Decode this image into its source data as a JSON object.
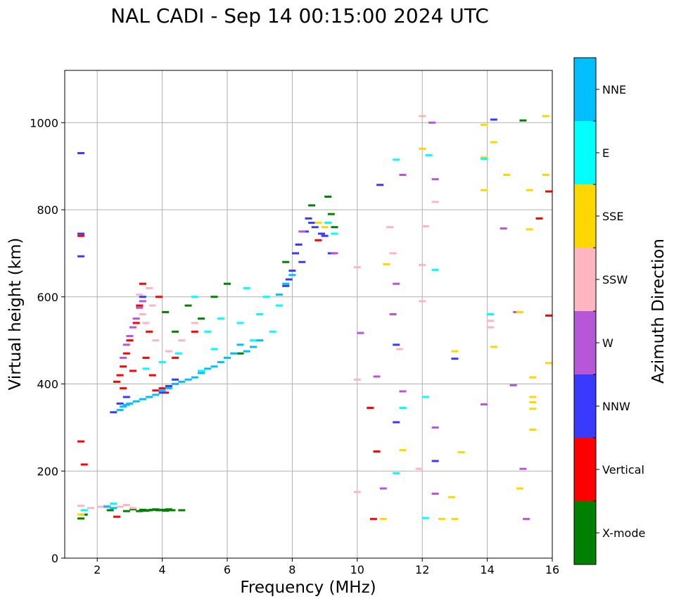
{
  "chart_data": {
    "type": "scatter",
    "title": "NAL CADI - Sep 14 00:15:00 2024 UTC",
    "xlabel": "Frequency (MHz)",
    "ylabel": "Virtual height (km)",
    "xlim": [
      1,
      16
    ],
    "ylim": [
      0,
      1120
    ],
    "xticks": [
      2,
      4,
      6,
      8,
      10,
      12,
      14,
      16
    ],
    "yticks": [
      0,
      200,
      400,
      600,
      800,
      1000
    ],
    "grid": true,
    "colorbar": {
      "title": "Azimuth Direction",
      "categories": [
        "X-mode",
        "Vertical",
        "NNW",
        "W",
        "SSW",
        "SSE",
        "E",
        "NNE"
      ],
      "colors": [
        "#008000",
        "#ff0000",
        "#3a3aff",
        "#b557d6",
        "#ffb6c1",
        "#ffd700",
        "#00ffff",
        "#00bfff"
      ]
    },
    "series": [
      {
        "name": "X-mode",
        "points": [
          [
            1.5,
            91
          ],
          [
            1.6,
            100
          ],
          [
            2.4,
            110
          ],
          [
            2.9,
            108
          ],
          [
            3.1,
            112
          ],
          [
            3.3,
            108
          ],
          [
            3.4,
            111
          ],
          [
            3.5,
            109
          ],
          [
            3.6,
            110
          ],
          [
            3.7,
            111
          ],
          [
            3.8,
            112
          ],
          [
            3.9,
            110
          ],
          [
            4.0,
            111
          ],
          [
            4.1,
            109
          ],
          [
            4.2,
            112
          ],
          [
            4.3,
            110
          ],
          [
            4.6,
            110
          ],
          [
            4.1,
            565
          ],
          [
            4.4,
            520
          ],
          [
            4.8,
            580
          ],
          [
            5.2,
            550
          ],
          [
            5.6,
            600
          ],
          [
            6.0,
            630
          ],
          [
            6.4,
            470
          ],
          [
            7.8,
            680
          ],
          [
            8.6,
            810
          ],
          [
            9.1,
            830
          ],
          [
            9.2,
            790
          ],
          [
            9.3,
            760
          ],
          [
            15.1,
            1005
          ]
        ]
      },
      {
        "name": "Vertical",
        "points": [
          [
            1.5,
            740
          ],
          [
            1.5,
            268
          ],
          [
            1.6,
            215
          ],
          [
            2.6,
            95
          ],
          [
            2.6,
            405
          ],
          [
            2.7,
            420
          ],
          [
            2.8,
            440
          ],
          [
            2.8,
            390
          ],
          [
            2.9,
            470
          ],
          [
            3.0,
            500
          ],
          [
            3.1,
            430
          ],
          [
            3.2,
            540
          ],
          [
            3.3,
            580
          ],
          [
            3.4,
            630
          ],
          [
            3.5,
            460
          ],
          [
            3.6,
            520
          ],
          [
            3.7,
            420
          ],
          [
            3.8,
            385
          ],
          [
            3.9,
            600
          ],
          [
            4.0,
            390
          ],
          [
            4.1,
            380
          ],
          [
            4.4,
            460
          ],
          [
            5.0,
            520
          ],
          [
            8.8,
            730
          ],
          [
            10.4,
            345
          ],
          [
            10.5,
            90
          ],
          [
            10.6,
            245
          ],
          [
            15.9,
            842
          ],
          [
            15.6,
            780
          ],
          [
            16,
            557
          ]
        ]
      },
      {
        "name": "NNW",
        "points": [
          [
            1.5,
            930
          ],
          [
            1.5,
            693
          ],
          [
            1.5,
            745
          ],
          [
            2.5,
            335
          ],
          [
            2.7,
            355
          ],
          [
            2.9,
            370
          ],
          [
            3.4,
            600
          ],
          [
            4.0,
            380
          ],
          [
            4.2,
            395
          ],
          [
            4.4,
            410
          ],
          [
            7.8,
            625
          ],
          [
            7.9,
            640
          ],
          [
            8.0,
            660
          ],
          [
            8.1,
            700
          ],
          [
            8.2,
            720
          ],
          [
            8.3,
            680
          ],
          [
            8.4,
            750
          ],
          [
            8.5,
            780
          ],
          [
            8.6,
            770
          ],
          [
            8.7,
            760
          ],
          [
            8.9,
            745
          ],
          [
            9.0,
            740
          ],
          [
            9.2,
            700
          ],
          [
            10.7,
            857
          ],
          [
            11.2,
            312
          ],
          [
            12.4,
            223
          ],
          [
            14.2,
            1007
          ],
          [
            13.0,
            458
          ],
          [
            11.2,
            490
          ]
        ]
      },
      {
        "name": "W",
        "points": [
          [
            2.8,
            460
          ],
          [
            2.9,
            490
          ],
          [
            3.0,
            510
          ],
          [
            3.1,
            530
          ],
          [
            3.2,
            550
          ],
          [
            3.3,
            575
          ],
          [
            3.4,
            590
          ],
          [
            8.3,
            750
          ],
          [
            9.3,
            700
          ],
          [
            10.1,
            517
          ],
          [
            10.6,
            417
          ],
          [
            11.1,
            560
          ],
          [
            11.4,
            880
          ],
          [
            11.2,
            630
          ],
          [
            12.4,
            870
          ],
          [
            12.3,
            1000
          ],
          [
            12.4,
            300
          ],
          [
            13.9,
            353
          ],
          [
            14.5,
            757
          ],
          [
            14.8,
            397
          ],
          [
            14.9,
            565
          ],
          [
            15.1,
            205
          ],
          [
            15.2,
            90
          ],
          [
            12.4,
            148
          ],
          [
            11.4,
            383
          ],
          [
            10.8,
            160
          ]
        ]
      },
      {
        "name": "SSW",
        "points": [
          [
            1.5,
            120
          ],
          [
            1.8,
            115
          ],
          [
            2.1,
            118
          ],
          [
            2.3,
            120
          ],
          [
            2.5,
            125
          ],
          [
            2.7,
            118
          ],
          [
            2.9,
            122
          ],
          [
            3.1,
            115
          ],
          [
            3.3,
            605
          ],
          [
            3.4,
            560
          ],
          [
            3.5,
            540
          ],
          [
            3.6,
            620
          ],
          [
            3.7,
            580
          ],
          [
            3.8,
            500
          ],
          [
            4.2,
            475
          ],
          [
            4.6,
            500
          ],
          [
            5.0,
            540
          ],
          [
            10.0,
            410
          ],
          [
            10.0,
            668
          ],
          [
            10.0,
            152
          ],
          [
            11.0,
            760
          ],
          [
            11.1,
            700
          ],
          [
            11.3,
            480
          ],
          [
            12.0,
            1015
          ],
          [
            12.1,
            762
          ],
          [
            12.4,
            818
          ],
          [
            12.0,
            673
          ],
          [
            12.0,
            590
          ],
          [
            11.9,
            205
          ],
          [
            14.1,
            545
          ],
          [
            14.1,
            530
          ]
        ]
      },
      {
        "name": "SSE",
        "points": [
          [
            1.5,
            100
          ],
          [
            8.8,
            770
          ],
          [
            9.0,
            760
          ],
          [
            10.8,
            90
          ],
          [
            10.9,
            675
          ],
          [
            11.4,
            248
          ],
          [
            12.0,
            940
          ],
          [
            12.6,
            90
          ],
          [
            13.0,
            475
          ],
          [
            13.2,
            243
          ],
          [
            13.0,
            90
          ],
          [
            12.9,
            140
          ],
          [
            13.9,
            995
          ],
          [
            13.9,
            920
          ],
          [
            13.9,
            845
          ],
          [
            14.2,
            955
          ],
          [
            14.2,
            485
          ],
          [
            14.6,
            880
          ],
          [
            15.0,
            565
          ],
          [
            15.0,
            160
          ],
          [
            15.3,
            845
          ],
          [
            15.3,
            755
          ],
          [
            15.4,
            415
          ],
          [
            15.4,
            370
          ],
          [
            15.4,
            358
          ],
          [
            15.4,
            343
          ],
          [
            15.4,
            295
          ],
          [
            15.8,
            1015
          ],
          [
            15.8,
            880
          ],
          [
            15.9,
            448
          ]
        ]
      },
      {
        "name": "E",
        "points": [
          [
            1.6,
            110
          ],
          [
            2.5,
            125
          ],
          [
            3.5,
            435
          ],
          [
            4.0,
            450
          ],
          [
            4.5,
            470
          ],
          [
            5.0,
            600
          ],
          [
            5.2,
            430
          ],
          [
            5.4,
            520
          ],
          [
            5.6,
            480
          ],
          [
            5.8,
            550
          ],
          [
            6.2,
            470
          ],
          [
            6.4,
            540
          ],
          [
            6.6,
            620
          ],
          [
            6.8,
            500
          ],
          [
            7.0,
            560
          ],
          [
            7.2,
            600
          ],
          [
            7.4,
            520
          ],
          [
            7.6,
            580
          ],
          [
            9.1,
            770
          ],
          [
            9.3,
            745
          ],
          [
            11.2,
            915
          ],
          [
            11.4,
            345
          ],
          [
            12.2,
            925
          ],
          [
            12.4,
            662
          ],
          [
            12.1,
            370
          ],
          [
            13.9,
            917
          ],
          [
            14.1,
            560
          ],
          [
            11.2,
            195
          ],
          [
            12.1,
            92
          ]
        ]
      },
      {
        "name": "NNE",
        "points": [
          [
            2.3,
            118
          ],
          [
            2.5,
            115
          ],
          [
            2.7,
            340
          ],
          [
            2.8,
            348
          ],
          [
            2.9,
            352
          ],
          [
            3.0,
            355
          ],
          [
            3.2,
            360
          ],
          [
            3.4,
            365
          ],
          [
            3.6,
            370
          ],
          [
            3.8,
            375
          ],
          [
            4.0,
            385
          ],
          [
            4.2,
            390
          ],
          [
            4.4,
            400
          ],
          [
            4.6,
            405
          ],
          [
            4.8,
            410
          ],
          [
            5.0,
            415
          ],
          [
            5.2,
            425
          ],
          [
            5.4,
            435
          ],
          [
            5.6,
            440
          ],
          [
            5.8,
            450
          ],
          [
            6.0,
            460
          ],
          [
            6.2,
            470
          ],
          [
            6.4,
            490
          ],
          [
            6.6,
            475
          ],
          [
            6.8,
            485
          ],
          [
            7.0,
            500
          ],
          [
            7.6,
            605
          ],
          [
            7.8,
            630
          ],
          [
            8.0,
            650
          ]
        ]
      }
    ]
  }
}
